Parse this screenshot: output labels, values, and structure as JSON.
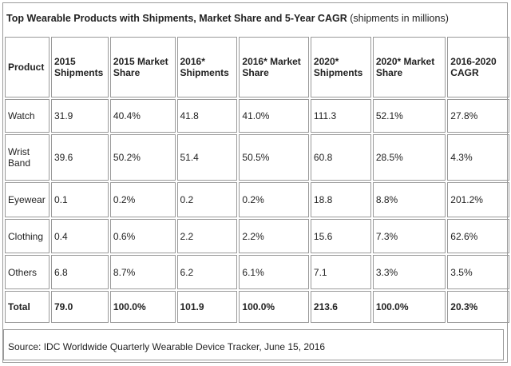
{
  "title_bold": "Top Wearable Products with Shipments, Market Share and 5-Year CAGR",
  "title_note": "(shipments in millions)",
  "columns": [
    "Product",
    "2015 Shipments",
    "2015 Market Share",
    "2016* Shipments",
    "2016* Market Share",
    "2020* Shipments",
    "2020* Market Share",
    "2016-2020 CAGR"
  ],
  "rows": [
    [
      "Watch",
      "31.9",
      "40.4%",
      "41.8",
      "41.0%",
      "111.3",
      "52.1%",
      "27.8%"
    ],
    [
      "Wrist Band",
      "39.6",
      "50.2%",
      "51.4",
      "50.5%",
      "60.8",
      "28.5%",
      "4.3%"
    ],
    [
      "Eyewear",
      "0.1",
      "0.2%",
      "0.2",
      "0.2%",
      "18.8",
      "8.8%",
      "201.2%"
    ],
    [
      "Clothing",
      "0.4",
      "0.6%",
      "2.2",
      "2.2%",
      "15.6",
      "7.3%",
      "62.6%"
    ],
    [
      "Others",
      "6.8",
      "8.7%",
      "6.2",
      "6.1%",
      "7.1",
      "3.3%",
      "3.5%"
    ],
    [
      "Total",
      "79.0",
      "100.0%",
      "101.9",
      "100.0%",
      "213.6",
      "100.0%",
      "20.3%"
    ]
  ],
  "source": "Source: IDC Worldwide Quarterly Wearable Device Tracker, June 15, 2016",
  "chart_data": {
    "type": "table",
    "title": "Top Wearable Products with Shipments, Market Share and 5-Year CAGR (shipments in millions)",
    "columns": [
      "Product",
      "2015 Shipments",
      "2015 Market Share",
      "2016* Shipments",
      "2016* Market Share",
      "2020* Shipments",
      "2020* Market Share",
      "2016-2020 CAGR"
    ],
    "rows": [
      [
        "Watch",
        31.9,
        "40.4%",
        41.8,
        "41.0%",
        111.3,
        "52.1%",
        "27.8%"
      ],
      [
        "Wrist Band",
        39.6,
        "50.2%",
        51.4,
        "50.5%",
        60.8,
        "28.5%",
        "4.3%"
      ],
      [
        "Eyewear",
        0.1,
        "0.2%",
        0.2,
        "0.2%",
        18.8,
        "8.8%",
        "201.2%"
      ],
      [
        "Clothing",
        0.4,
        "0.6%",
        2.2,
        "2.2%",
        15.6,
        "7.3%",
        "62.6%"
      ],
      [
        "Others",
        6.8,
        "8.7%",
        6.2,
        "6.1%",
        7.1,
        "3.3%",
        "3.5%"
      ],
      [
        "Total",
        79.0,
        "100.0%",
        101.9,
        "100.0%",
        213.6,
        "100.0%",
        "20.3%"
      ]
    ]
  }
}
